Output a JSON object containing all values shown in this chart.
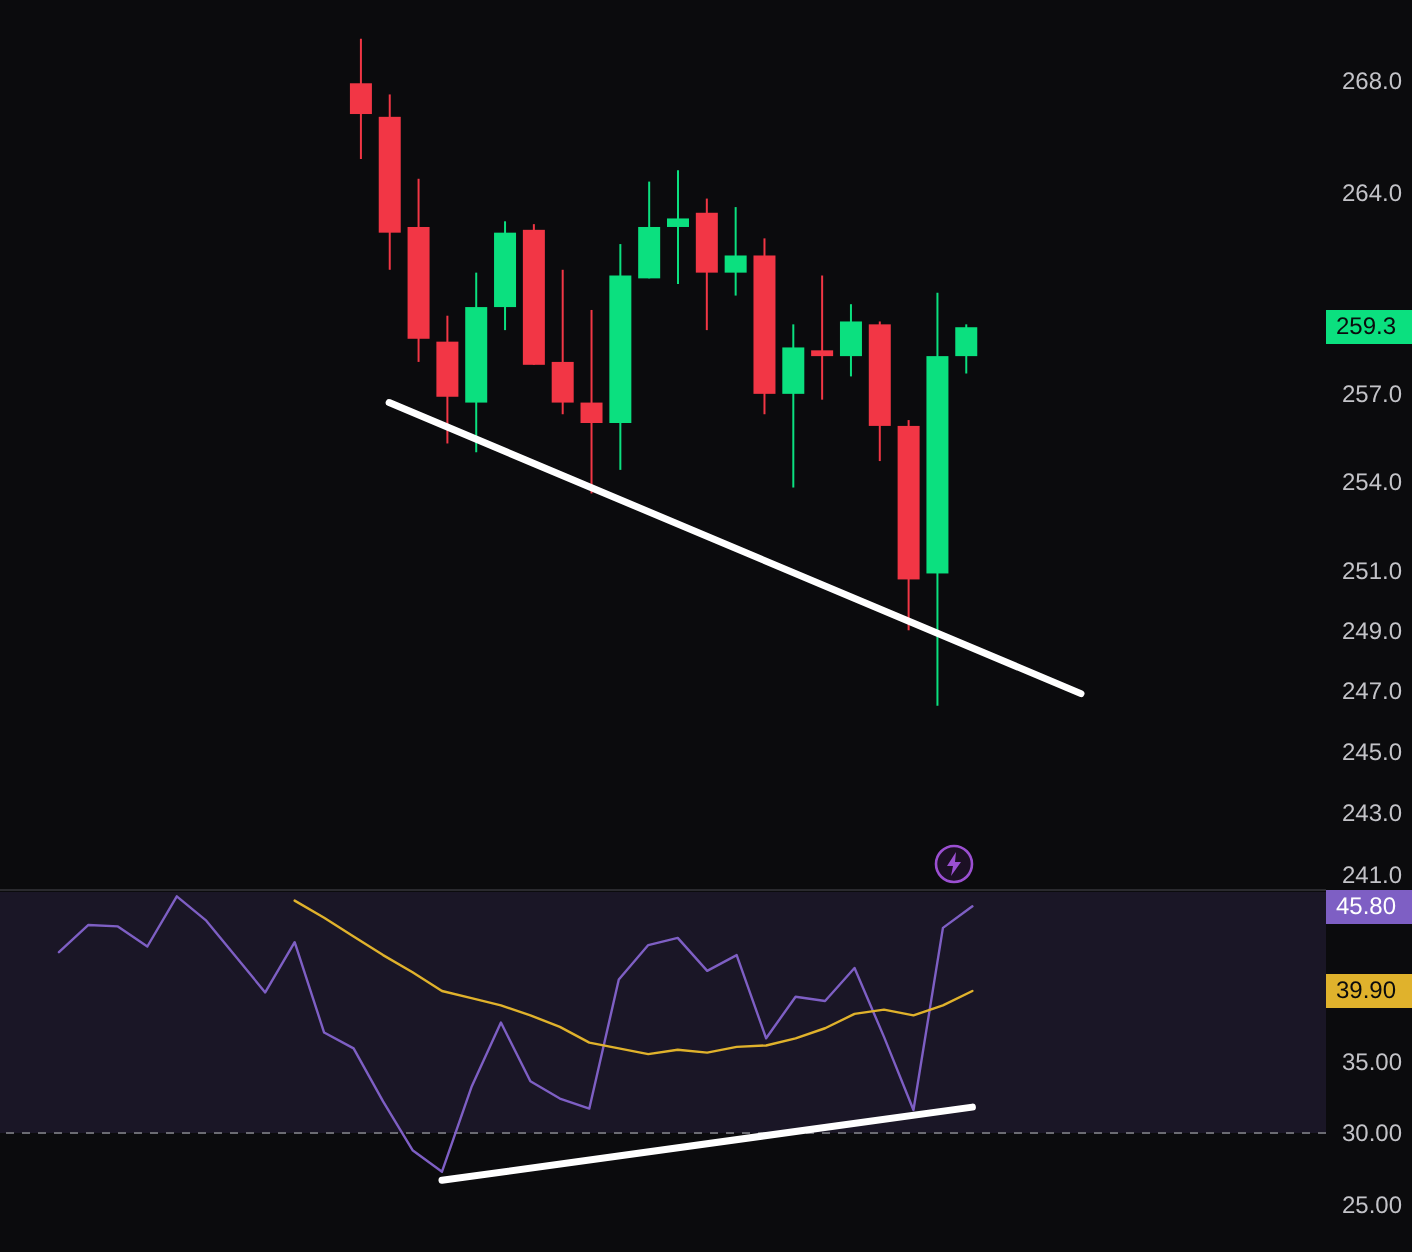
{
  "chart_data": [
    {
      "type": "candlestick",
      "categories": [
        null,
        null,
        null,
        null,
        null,
        null,
        null,
        null,
        null,
        null,
        null,
        null,
        null,
        null,
        null,
        null,
        null,
        null,
        null,
        null,
        null,
        null,
        null,
        null,
        null,
        null,
        null,
        null,
        null,
        null,
        null,
        null,
        null,
        null,
        null,
        null,
        null,
        null,
        null,
        null,
        null,
        null,
        null,
        null,
        null,
        null
      ],
      "ohlc": [
        null,
        null,
        null,
        null,
        null,
        null,
        null,
        null,
        null,
        null,
        null,
        null,
        [
          267.9,
          269.5,
          265.2,
          266.8
        ],
        [
          266.7,
          267.5,
          261.3,
          262.6
        ],
        [
          262.8,
          264.5,
          258.1,
          258.9
        ],
        [
          258.8,
          259.7,
          255.3,
          256.9
        ],
        [
          256.7,
          261.2,
          255.0,
          260.0
        ],
        [
          260.0,
          263.0,
          259.2,
          262.6
        ],
        [
          262.7,
          262.9,
          258.0,
          258.0
        ],
        [
          258.1,
          261.3,
          256.3,
          256.7
        ],
        [
          256.7,
          259.9,
          253.6,
          256.0
        ],
        [
          256.0,
          262.2,
          254.4,
          261.1
        ],
        [
          261.0,
          264.4,
          261.0,
          262.8
        ],
        [
          262.8,
          264.8,
          260.8,
          263.1
        ],
        [
          263.3,
          263.8,
          259.2,
          261.2
        ],
        [
          261.2,
          263.5,
          260.4,
          261.8
        ],
        [
          261.8,
          262.4,
          256.3,
          257.0
        ],
        [
          257.0,
          259.4,
          253.8,
          258.6
        ],
        [
          258.5,
          261.1,
          256.8,
          258.3
        ],
        [
          258.3,
          260.1,
          257.6,
          259.5
        ],
        [
          259.4,
          259.5,
          254.7,
          255.9
        ],
        [
          255.9,
          256.1,
          249.0,
          250.7
        ],
        [
          250.9,
          260.5,
          246.5,
          258.3
        ],
        [
          258.3,
          259.4,
          257.7,
          259.3
        ],
        null,
        null,
        null,
        null,
        null,
        null,
        null,
        null,
        null,
        null,
        null,
        null
      ],
      "colors": [
        null,
        null,
        null,
        null,
        null,
        null,
        null,
        null,
        null,
        null,
        null,
        null,
        "#f23645",
        "#f23645",
        "#f23645",
        "#f23645",
        "#0be07f",
        "#0be07f",
        "#f23645",
        "#f23645",
        "#f23645",
        "#0be07f",
        "#0be07f",
        "#0be07f",
        "#f23645",
        "#0be07f",
        "#f23645",
        "#0be07f",
        "#f23645",
        "#0be07f",
        "#f23645",
        "#f23645",
        "#0be07f",
        "#0be07f",
        null,
        null,
        null,
        null,
        null,
        null,
        null,
        null,
        null,
        null,
        null,
        null
      ],
      "series": [
        {
          "type": "line",
          "color": "#ffffff",
          "values": [
            null,
            null,
            null,
            null,
            null,
            null,
            null,
            null,
            null,
            null,
            null,
            null,
            null,
            256.7,
            null,
            null,
            null,
            null,
            null,
            null,
            null,
            null,
            null,
            null,
            null,
            null,
            null,
            null,
            null,
            null,
            null,
            null,
            null,
            null,
            null,
            null,
            null,
            246.9,
            null,
            null,
            null,
            null,
            null,
            null,
            null,
            null
          ]
        }
      ],
      "log": "y",
      "ylim": [
        240.5,
        270.9
      ],
      "yticks": [
        {
          "value": 241,
          "label": "241.0"
        },
        {
          "value": 243,
          "label": "243.0"
        },
        {
          "value": 245,
          "label": "245.0"
        },
        {
          "value": 247,
          "label": "247.0"
        },
        {
          "value": 249,
          "label": "249.0"
        },
        {
          "value": 251,
          "label": "251.0"
        },
        {
          "value": 254,
          "label": "254.0"
        },
        {
          "value": 257,
          "label": "257.0"
        },
        {
          "value": 264,
          "label": "264.0"
        },
        {
          "value": 268,
          "label": "268.0"
        }
      ],
      "tick_labels": "y",
      "annotations": [
        "259.3"
      ]
    },
    {
      "type": "line",
      "categories": [
        null,
        null,
        null,
        null,
        null,
        null,
        null,
        null,
        null,
        null,
        null,
        null,
        null,
        null,
        null,
        null,
        null,
        null,
        null,
        null,
        null,
        null,
        null,
        null,
        null,
        null,
        null,
        null,
        null,
        null,
        null,
        null,
        null,
        null,
        null,
        null,
        null,
        null,
        null,
        null,
        null,
        null,
        null,
        null,
        null,
        null
      ],
      "series": [
        {
          "color": "#7e5fc4",
          "values": [
            null,
            null,
            42.6,
            44.5,
            44.4,
            43.0,
            46.5,
            44.8,
            null,
            39.8,
            43.3,
            37.0,
            35.9,
            32.2,
            28.8,
            27.3,
            33.2,
            37.7,
            33.6,
            32.4,
            31.7,
            40.7,
            43.1,
            43.6,
            41.3,
            42.4,
            36.6,
            39.5,
            39.2,
            41.5,
            36.7,
            31.6,
            44.3,
            45.8,
            null,
            null,
            null,
            null,
            null,
            null,
            null,
            null,
            null,
            null,
            null,
            null
          ]
        },
        {
          "color": "#e0b22c",
          "values": [
            null,
            null,
            null,
            null,
            null,
            null,
            null,
            null,
            null,
            null,
            46.2,
            45.0,
            43.7,
            42.4,
            41.2,
            39.9,
            39.4,
            38.9,
            38.2,
            37.4,
            36.3,
            35.9,
            35.5,
            35.8,
            35.6,
            36.0,
            36.1,
            36.6,
            37.3,
            38.3,
            38.6,
            38.2,
            38.9,
            39.9,
            null,
            null,
            null,
            null,
            null,
            null,
            null,
            null,
            null,
            null,
            null,
            null
          ]
        },
        {
          "color": "#ffffff",
          "values": [
            null,
            null,
            null,
            null,
            null,
            null,
            null,
            null,
            null,
            null,
            null,
            null,
            null,
            null,
            null,
            26.7,
            null,
            null,
            null,
            null,
            null,
            null,
            null,
            null,
            null,
            null,
            null,
            null,
            null,
            null,
            null,
            null,
            null,
            31.8,
            null,
            null,
            null,
            null,
            null,
            null,
            null,
            null,
            null,
            null,
            null,
            null
          ]
        }
      ],
      "ylim": [
        21.7,
        46.8
      ],
      "yticks": [
        {
          "value": 25,
          "label": "25.00"
        },
        {
          "value": 30,
          "label": "30.00"
        },
        {
          "value": 35,
          "label": "35.00"
        }
      ],
      "ref_lines": [
        {
          "axis": "y",
          "value": 30,
          "color": "#6b6b72",
          "line_style": "dashed"
        }
      ],
      "bands": [
        {
          "axis": "y",
          "from": 30,
          "to": 46.8,
          "color": "#1a1626"
        }
      ],
      "tick_labels": "y",
      "annotations": [
        "45.80",
        "39.90"
      ]
    }
  ]
}
